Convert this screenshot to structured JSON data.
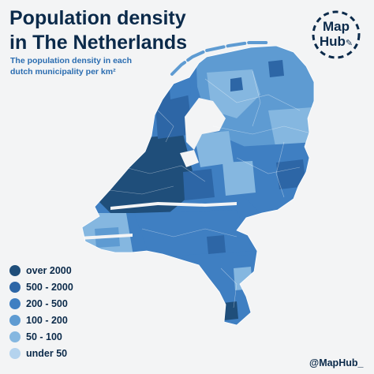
{
  "title_line1": "Population density",
  "title_line2": "in The Netherlands",
  "subtitle_line1": "The population density in each",
  "subtitle_line2": "dutch municipality per km²",
  "logo": {
    "line1": "Map",
    "line2": "Hub"
  },
  "legend": [
    {
      "label": "over 2000",
      "color": "#1f4e7a"
    },
    {
      "label": "500 - 2000",
      "color": "#2d66a6"
    },
    {
      "label": "200 - 500",
      "color": "#3f7fc2"
    },
    {
      "label": "100 - 200",
      "color": "#5e9bd2"
    },
    {
      "label": "50 - 100",
      "color": "#85b7e0"
    },
    {
      "label": "under 50",
      "color": "#b4d3ee"
    }
  ],
  "credit": "@MapHub_",
  "colors": {
    "background": "#f3f4f5",
    "title": "#0b2a4a",
    "subtitle": "#2a6cb0",
    "water": "#f3f4f5"
  }
}
